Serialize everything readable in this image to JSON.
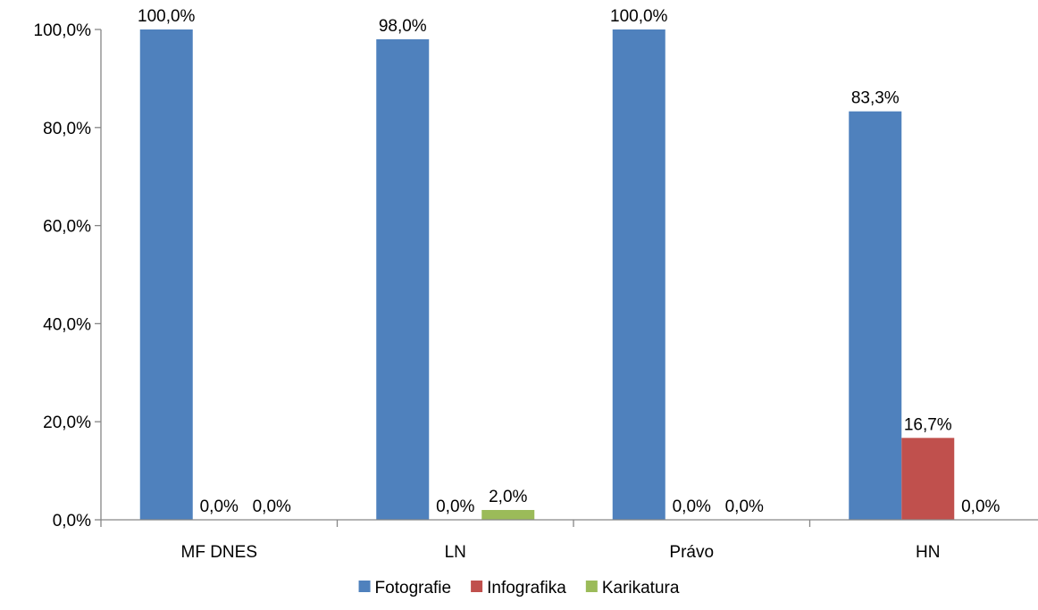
{
  "chart_data": {
    "type": "bar",
    "categories": [
      "MF DNES",
      "LN",
      "Právo",
      "HN"
    ],
    "series": [
      {
        "name": "Fotografie",
        "values": [
          100.0,
          98.0,
          100.0,
          83.3
        ],
        "labels": [
          "100,0%",
          "98,0%",
          "100,0%",
          "83,3%"
        ],
        "color": "#4F81BD"
      },
      {
        "name": "Infografika",
        "values": [
          0.0,
          0.0,
          0.0,
          16.7
        ],
        "labels": [
          "0,0%",
          "0,0%",
          "0,0%",
          "16,7%"
        ],
        "color": "#C0504D"
      },
      {
        "name": "Karikatura",
        "values": [
          0.0,
          2.0,
          0.0,
          0.0
        ],
        "labels": [
          "0,0%",
          "2,0%",
          "0,0%",
          "0,0%"
        ],
        "color": "#9BBB59"
      }
    ],
    "ylim": [
      0,
      100
    ],
    "y_ticks": [
      0,
      20,
      40,
      60,
      80,
      100
    ],
    "y_tick_labels": [
      "0,0%",
      "20,0%",
      "40,0%",
      "60,0%",
      "80,0%",
      "100,0%"
    ],
    "grid": false,
    "legend_position": "bottom",
    "xlabel": "",
    "ylabel": ""
  }
}
